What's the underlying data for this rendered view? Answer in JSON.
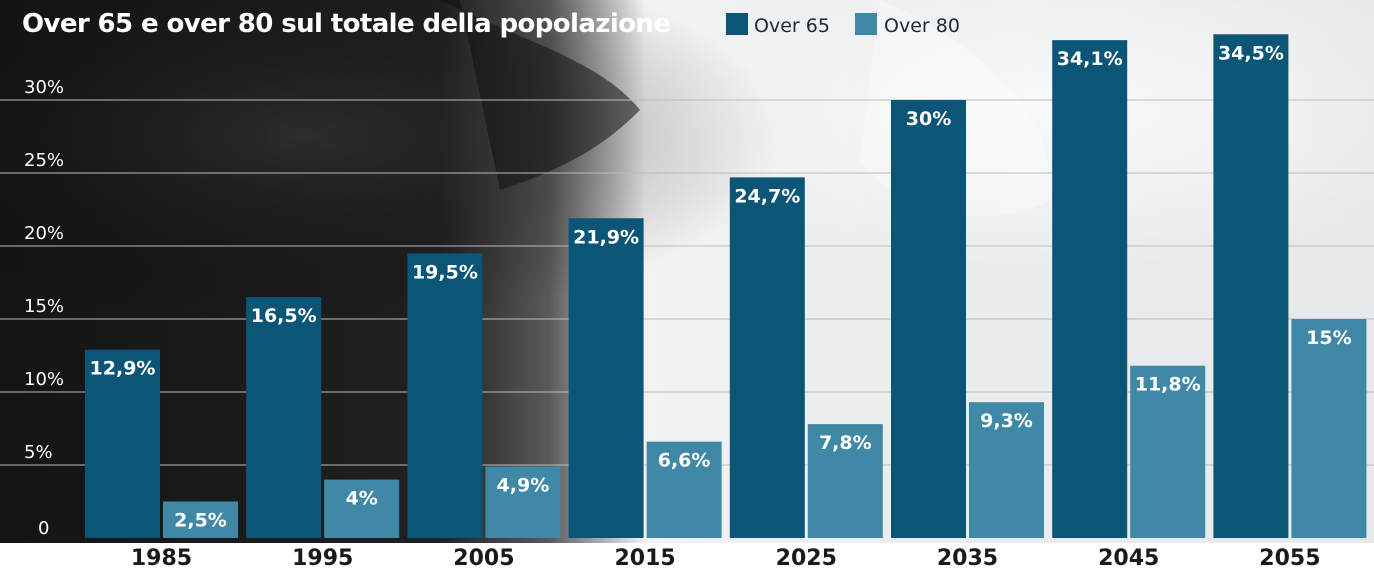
{
  "chart_data": {
    "type": "bar",
    "title": "Over 65 e over 80 sul totale della popolazione",
    "categories": [
      "1985",
      "1995",
      "2005",
      "2015",
      "2025",
      "2035",
      "2045",
      "2055"
    ],
    "series": [
      {
        "name": "Over 65",
        "color": "#0b5677",
        "values": [
          12.9,
          16.5,
          19.5,
          21.9,
          24.7,
          30,
          34.1,
          34.5
        ],
        "labels": [
          "12,9%",
          "16,5%",
          "19,5%",
          "21,9%",
          "24,7%",
          "30%",
          "34,1%",
          "34,5%"
        ]
      },
      {
        "name": "Over 80",
        "color": "#3f89a7",
        "values": [
          2.5,
          4,
          4.9,
          6.6,
          7.8,
          9.3,
          11.8,
          15
        ],
        "labels": [
          "2,5%",
          "4%",
          "4,9%",
          "6,6%",
          "7,8%",
          "9,3%",
          "11,8%",
          "15%"
        ]
      }
    ],
    "yticks": [
      {
        "value": 0,
        "label": "0"
      },
      {
        "value": 5,
        "label": "5%"
      },
      {
        "value": 10,
        "label": "10%"
      },
      {
        "value": 15,
        "label": "15%"
      },
      {
        "value": 20,
        "label": "20%"
      },
      {
        "value": 25,
        "label": "25%"
      },
      {
        "value": 30,
        "label": "30%"
      }
    ],
    "ylim": [
      0,
      35
    ],
    "grid": true,
    "legend": "top"
  }
}
